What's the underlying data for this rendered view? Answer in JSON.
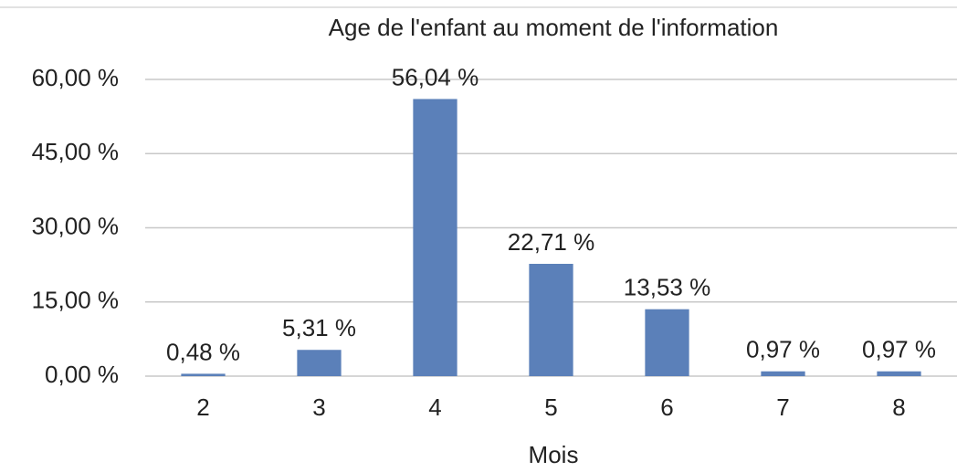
{
  "chart_data": {
    "type": "bar",
    "title": "Age de l'enfant au moment de l'information",
    "x_label": "Mois",
    "categories": [
      "2",
      "3",
      "4",
      "5",
      "6",
      "7",
      "8"
    ],
    "values": [
      0.48,
      5.31,
      56.04,
      22.71,
      13.53,
      0.97,
      0.97
    ],
    "value_labels": [
      "0,48 %",
      "5,31 %",
      "56,04 %",
      "22,71 %",
      "13,53 %",
      "0,97 %",
      "0,97 %"
    ],
    "color": "#5b80b9",
    "ylim": [
      0,
      60
    ],
    "yticks": [
      {
        "value": 0,
        "label": "0,00 %"
      },
      {
        "value": 15,
        "label": "15,00 %"
      },
      {
        "value": 30,
        "label": "30,00 %"
      },
      {
        "value": 45,
        "label": "45,00 %"
      },
      {
        "value": 60,
        "label": "60,00 %"
      }
    ],
    "grid": true
  }
}
